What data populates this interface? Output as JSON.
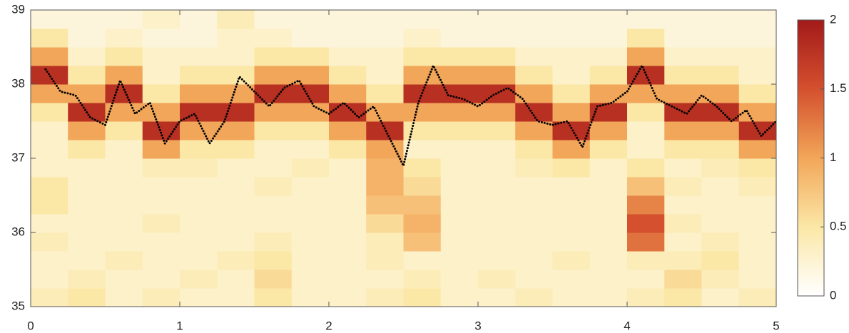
{
  "chart_data": {
    "type": "heatmap",
    "xbins": [
      0,
      0.25,
      0.5,
      0.75,
      1,
      1.25,
      1.5,
      1.75,
      2,
      2.25,
      2.5,
      2.75,
      3,
      3.25,
      3.5,
      3.75,
      4,
      4.25,
      4.5,
      4.75,
      5
    ],
    "ybins": [
      35,
      35.25,
      35.5,
      35.75,
      36,
      36.25,
      36.5,
      36.75,
      37,
      37.25,
      37.5,
      37.75,
      38,
      38.25,
      38.5,
      38.75,
      39
    ],
    "z": [
      [
        0.4,
        0.5,
        0.3,
        0.4,
        0.3,
        0.3,
        0.5,
        0.3,
        0.3,
        0.4,
        0.5,
        0.3,
        0.3,
        0.4,
        0.3,
        0.3,
        0.4,
        0.5,
        0.3,
        0.4
      ],
      [
        0.3,
        0.4,
        0.3,
        0.3,
        0.4,
        0.3,
        0.6,
        0.3,
        0.3,
        0.3,
        0.4,
        0.3,
        0.4,
        0.3,
        0.3,
        0.3,
        0.3,
        0.6,
        0.4,
        0.3
      ],
      [
        0.3,
        0.3,
        0.4,
        0.3,
        0.3,
        0.4,
        0.5,
        0.3,
        0.3,
        0.4,
        0.3,
        0.3,
        0.3,
        0.3,
        0.4,
        0.3,
        0.4,
        0.4,
        0.5,
        0.3
      ],
      [
        0.4,
        0.3,
        0.3,
        0.3,
        0.3,
        0.3,
        0.4,
        0.3,
        0.3,
        0.4,
        0.8,
        0.3,
        0.3,
        0.3,
        0.3,
        0.3,
        1.3,
        0.3,
        0.4,
        0.3
      ],
      [
        0.3,
        0.3,
        0.3,
        0.4,
        0.3,
        0.3,
        0.3,
        0.3,
        0.3,
        0.6,
        0.9,
        0.3,
        0.3,
        0.3,
        0.3,
        0.3,
        1.5,
        0.4,
        0.3,
        0.3
      ],
      [
        0.5,
        0.3,
        0.3,
        0.3,
        0.3,
        0.3,
        0.3,
        0.3,
        0.3,
        0.8,
        0.8,
        0.3,
        0.3,
        0.3,
        0.3,
        0.3,
        1.2,
        0.3,
        0.3,
        0.3
      ],
      [
        0.5,
        0.3,
        0.3,
        0.3,
        0.3,
        0.3,
        0.4,
        0.3,
        0.3,
        0.9,
        0.6,
        0.3,
        0.3,
        0.3,
        0.3,
        0.3,
        0.8,
        0.4,
        0.3,
        0.4
      ],
      [
        0.3,
        0.3,
        0.3,
        0.4,
        0.4,
        0.3,
        0.3,
        0.4,
        0.3,
        0.9,
        0.5,
        0.3,
        0.3,
        0.4,
        0.5,
        0.3,
        0.5,
        0.3,
        0.4,
        0.5
      ],
      [
        0.3,
        0.5,
        0.3,
        1.0,
        0.5,
        0.5,
        0.3,
        0.3,
        0.5,
        1.0,
        0.3,
        0.3,
        0.3,
        0.5,
        1.0,
        0.5,
        0.3,
        0.5,
        0.5,
        1.0
      ],
      [
        0.3,
        1.0,
        0.5,
        1.8,
        1.0,
        1.0,
        0.5,
        0.5,
        1.0,
        1.8,
        0.5,
        0.5,
        0.5,
        1.0,
        1.8,
        1.0,
        0.3,
        1.0,
        1.0,
        1.8
      ],
      [
        0.5,
        1.8,
        1.0,
        1.0,
        1.8,
        1.8,
        1.0,
        1.0,
        1.8,
        1.0,
        1.0,
        1.0,
        1.0,
        1.8,
        1.0,
        1.8,
        0.5,
        1.8,
        1.8,
        1.0
      ],
      [
        1.0,
        1.0,
        1.8,
        0.5,
        1.0,
        1.0,
        1.8,
        1.8,
        1.0,
        0.5,
        1.8,
        1.8,
        1.8,
        1.0,
        0.5,
        1.0,
        1.0,
        1.0,
        1.0,
        0.5
      ],
      [
        1.8,
        0.5,
        1.0,
        0.3,
        0.5,
        0.5,
        1.0,
        1.0,
        0.5,
        0.3,
        1.0,
        1.0,
        1.0,
        0.5,
        0.3,
        0.5,
        1.8,
        0.5,
        0.5,
        0.3
      ],
      [
        1.0,
        0.3,
        0.5,
        0.3,
        0.3,
        0.3,
        0.5,
        0.5,
        0.3,
        0.3,
        0.5,
        0.5,
        0.5,
        0.3,
        0.3,
        0.3,
        1.0,
        0.3,
        0.3,
        0.3
      ],
      [
        0.5,
        0.2,
        0.3,
        0.2,
        0.2,
        0.3,
        0.3,
        0.2,
        0.2,
        0.2,
        0.3,
        0.2,
        0.2,
        0.2,
        0.2,
        0.2,
        0.5,
        0.2,
        0.2,
        0.2
      ],
      [
        0.2,
        0.2,
        0.2,
        0.3,
        0.2,
        0.4,
        0.2,
        0.2,
        0.2,
        0.2,
        0.2,
        0.2,
        0.2,
        0.2,
        0.2,
        0.2,
        0.2,
        0.2,
        0.2,
        0.2
      ]
    ],
    "zlim": [
      0,
      2
    ],
    "zticks": [
      0,
      0.5,
      1,
      1.5,
      2
    ],
    "colormap": [
      "#ffffff",
      "#fbe7a6",
      "#f2a659",
      "#d4502e",
      "#a31a1a"
    ],
    "line": {
      "color": "#000000",
      "x": [
        0.1,
        0.2,
        0.3,
        0.4,
        0.5,
        0.6,
        0.7,
        0.8,
        0.9,
        1.0,
        1.1,
        1.2,
        1.3,
        1.4,
        1.5,
        1.6,
        1.7,
        1.8,
        1.9,
        2.0,
        2.1,
        2.2,
        2.3,
        2.4,
        2.5,
        2.6,
        2.7,
        2.8,
        2.9,
        3.0,
        3.1,
        3.2,
        3.3,
        3.4,
        3.5,
        3.6,
        3.7,
        3.8,
        3.9,
        4.0,
        4.1,
        4.2,
        4.3,
        4.4,
        4.5,
        4.6,
        4.7,
        4.8,
        4.9,
        5.0
      ],
      "values": [
        38.2,
        37.9,
        37.85,
        37.55,
        37.45,
        38.05,
        37.6,
        37.75,
        37.2,
        37.5,
        37.6,
        37.2,
        37.5,
        38.1,
        37.9,
        37.7,
        37.95,
        38.05,
        37.7,
        37.6,
        37.75,
        37.55,
        37.7,
        37.3,
        36.9,
        37.75,
        38.25,
        37.85,
        37.8,
        37.7,
        37.85,
        37.95,
        37.8,
        37.5,
        37.45,
        37.5,
        37.15,
        37.7,
        37.75,
        37.9,
        38.25,
        37.8,
        37.7,
        37.6,
        37.85,
        37.7,
        37.5,
        37.65,
        37.3,
        37.5
      ]
    },
    "xlim": [
      0,
      5
    ],
    "xticks": [
      0,
      1,
      2,
      3,
      4,
      5
    ],
    "ylim": [
      35,
      39
    ],
    "yticks": [
      35,
      36,
      37,
      38,
      39
    ]
  }
}
